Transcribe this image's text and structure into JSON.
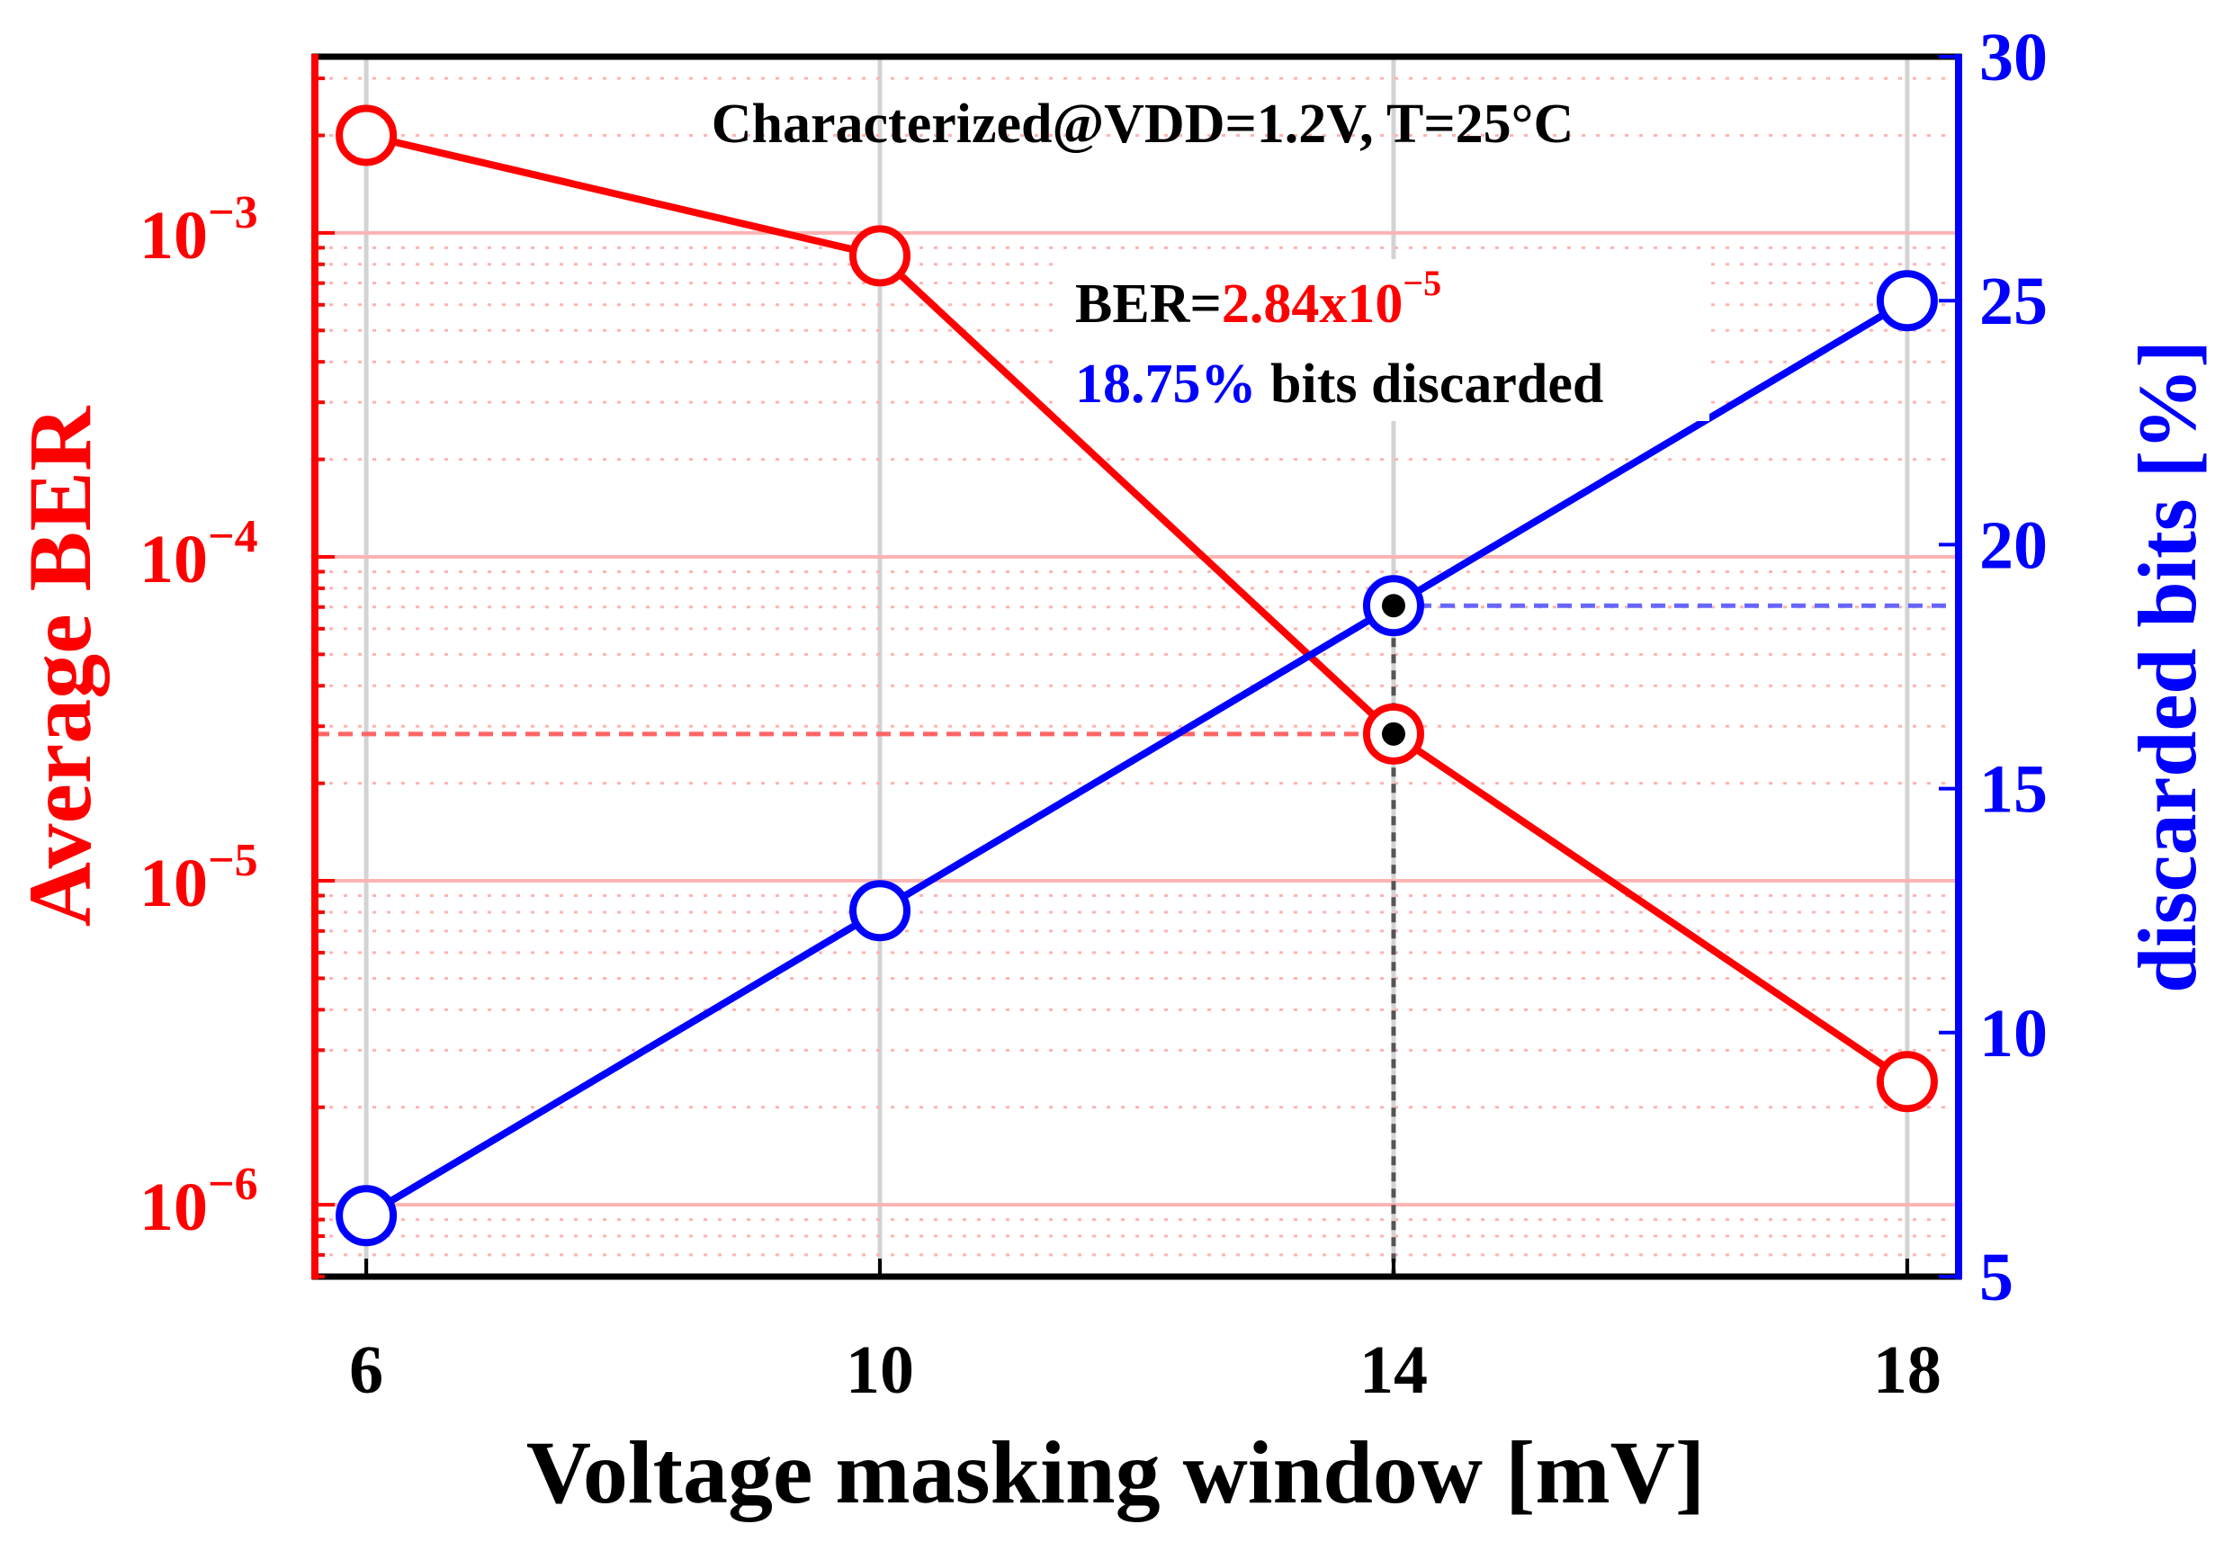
{
  "chart_data": {
    "type": "line",
    "x": [
      6,
      10,
      14,
      18
    ],
    "xlabel": "Voltage masking window [mV]",
    "xticks": [
      "6",
      "10",
      "14",
      "18"
    ],
    "xlim": [
      5.6,
      18.4
    ],
    "series": [
      {
        "name": "Average BER",
        "axis": "left",
        "scale": "log",
        "color": "#ff0000",
        "values": [
          0.002,
          0.00085,
          2.84e-05,
          2.4e-06
        ]
      },
      {
        "name": "discarded bits [%]",
        "axis": "right",
        "scale": "linear",
        "color": "#0000ff",
        "values": [
          6.25,
          12.5,
          18.75,
          25
        ]
      }
    ],
    "ylabel_left": "Average BER",
    "ylim_left": [
      6e-07,
      0.0035
    ],
    "yticks_left": [
      {
        "base": "10",
        "exp": "−3",
        "value": 0.001
      },
      {
        "base": "10",
        "exp": "−4",
        "value": 0.0001
      },
      {
        "base": "10",
        "exp": "−5",
        "value": 1e-05
      },
      {
        "base": "10",
        "exp": "−6",
        "value": 1e-06
      }
    ],
    "ylabel_right": "discarded bits [%]",
    "ylim_right": [
      5,
      30
    ],
    "yticks_right": [
      "5",
      "10",
      "15",
      "20",
      "25",
      "30"
    ],
    "grid": true,
    "highlight": {
      "x": 14,
      "ber": 2.84e-05,
      "discarded": 18.75
    },
    "annotations": {
      "condition": "Characterized@VDD=1.2V, T=25°C",
      "ber_label": "BER=",
      "ber_value": "2.84x10",
      "ber_exp": "−5",
      "discard_value": "18.75%",
      "discard_label": " bits discarded"
    },
    "colors": {
      "left_axis": "#ff0000",
      "right_axis": "#0000ff",
      "frame": "#000000",
      "xgrid": "#d3d3d3",
      "ygrid": "#ffb3b3"
    }
  }
}
